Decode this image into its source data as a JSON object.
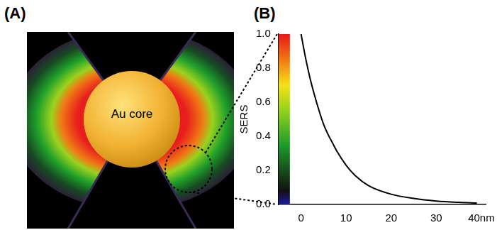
{
  "panel_a": {
    "label": "(A)",
    "text": "Au core"
  },
  "chart_data": {
    "type": "line",
    "panel_label": "(B)",
    "y_label": "SERS",
    "x": [
      0,
      1,
      2,
      3,
      4,
      5,
      6,
      7,
      8,
      10,
      12,
      15,
      20,
      25,
      30,
      35,
      39
    ],
    "values": [
      1.0,
      0.86,
      0.74,
      0.64,
      0.55,
      0.47,
      0.41,
      0.36,
      0.31,
      0.23,
      0.17,
      0.11,
      0.06,
      0.035,
      0.02,
      0.012,
      0.008
    ],
    "color": "#000000",
    "xlim": [
      -5,
      41
    ],
    "xticks": [
      0,
      10,
      20,
      30,
      {
        "value": 40,
        "label": "40nm"
      }
    ],
    "ylim": [
      0,
      1
    ],
    "yticks": [
      {
        "value": 0,
        "label": "0.0"
      },
      0.2,
      0.4,
      0.6,
      0.8,
      {
        "value": 1,
        "label": "1.0"
      }
    ],
    "grid": false,
    "colorbar": {
      "range": [
        0,
        1
      ]
    }
  }
}
